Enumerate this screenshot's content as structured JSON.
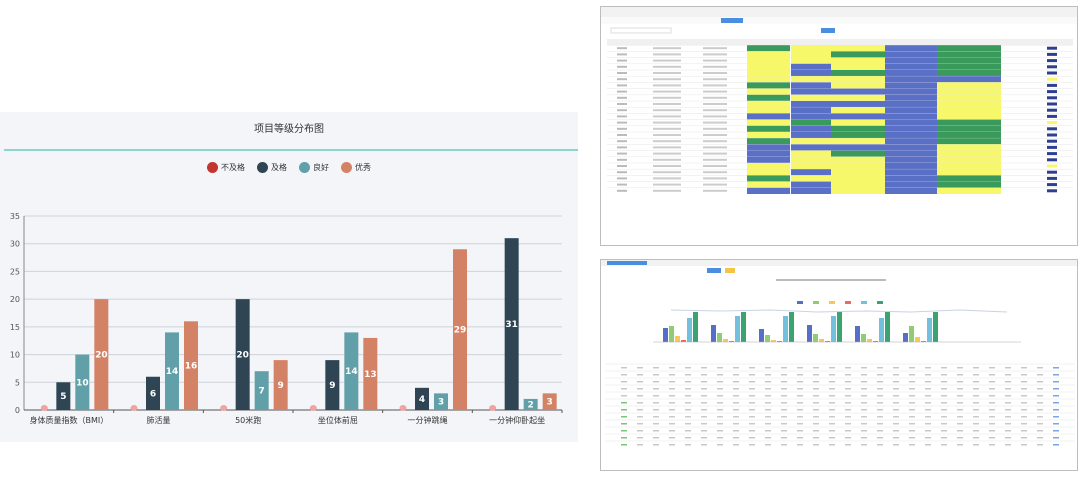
{
  "chart": {
    "title": "项目等级分布图",
    "legend": [
      {
        "label": "不及格",
        "color": "#c23531"
      },
      {
        "label": "及格",
        "color": "#2f4554"
      },
      {
        "label": "良好",
        "color": "#61a0a8"
      },
      {
        "label": "优秀",
        "color": "#d48265"
      }
    ]
  },
  "chart_data": {
    "type": "bar",
    "title": "项目等级分布图",
    "categories": [
      "身体质量指数（BMI）",
      "肺活量",
      "50米跑",
      "坐位体前屈",
      "一分钟跳绳",
      "一分钟仰卧起坐"
    ],
    "series": [
      {
        "name": "不及格",
        "values": [
          0,
          0,
          0,
          0,
          0,
          0
        ]
      },
      {
        "name": "及格",
        "values": [
          5,
          6,
          20,
          9,
          4,
          31
        ]
      },
      {
        "name": "良好",
        "values": [
          10,
          14,
          7,
          14,
          3,
          2
        ]
      },
      {
        "name": "优秀",
        "values": [
          20,
          16,
          9,
          13,
          29,
          3
        ]
      }
    ],
    "ylim": [
      0,
      35
    ],
    "yticks": [
      0,
      5,
      10,
      15,
      20,
      25,
      30,
      35
    ],
    "grid": true,
    "legend_position": "top-center"
  },
  "thumb_table": {
    "colors": {
      "green": "#3a9a5b",
      "yellow": "#f7f76a",
      "blue": "#5a6fc6",
      "navy": "#2f3f8f"
    }
  },
  "thumb_report": {
    "colors": {
      "blue": "#5470c6",
      "green": "#91cc75",
      "yellow": "#fac858",
      "red": "#ee6666",
      "cyan": "#73c0de",
      "dgreen": "#3ba272"
    }
  }
}
